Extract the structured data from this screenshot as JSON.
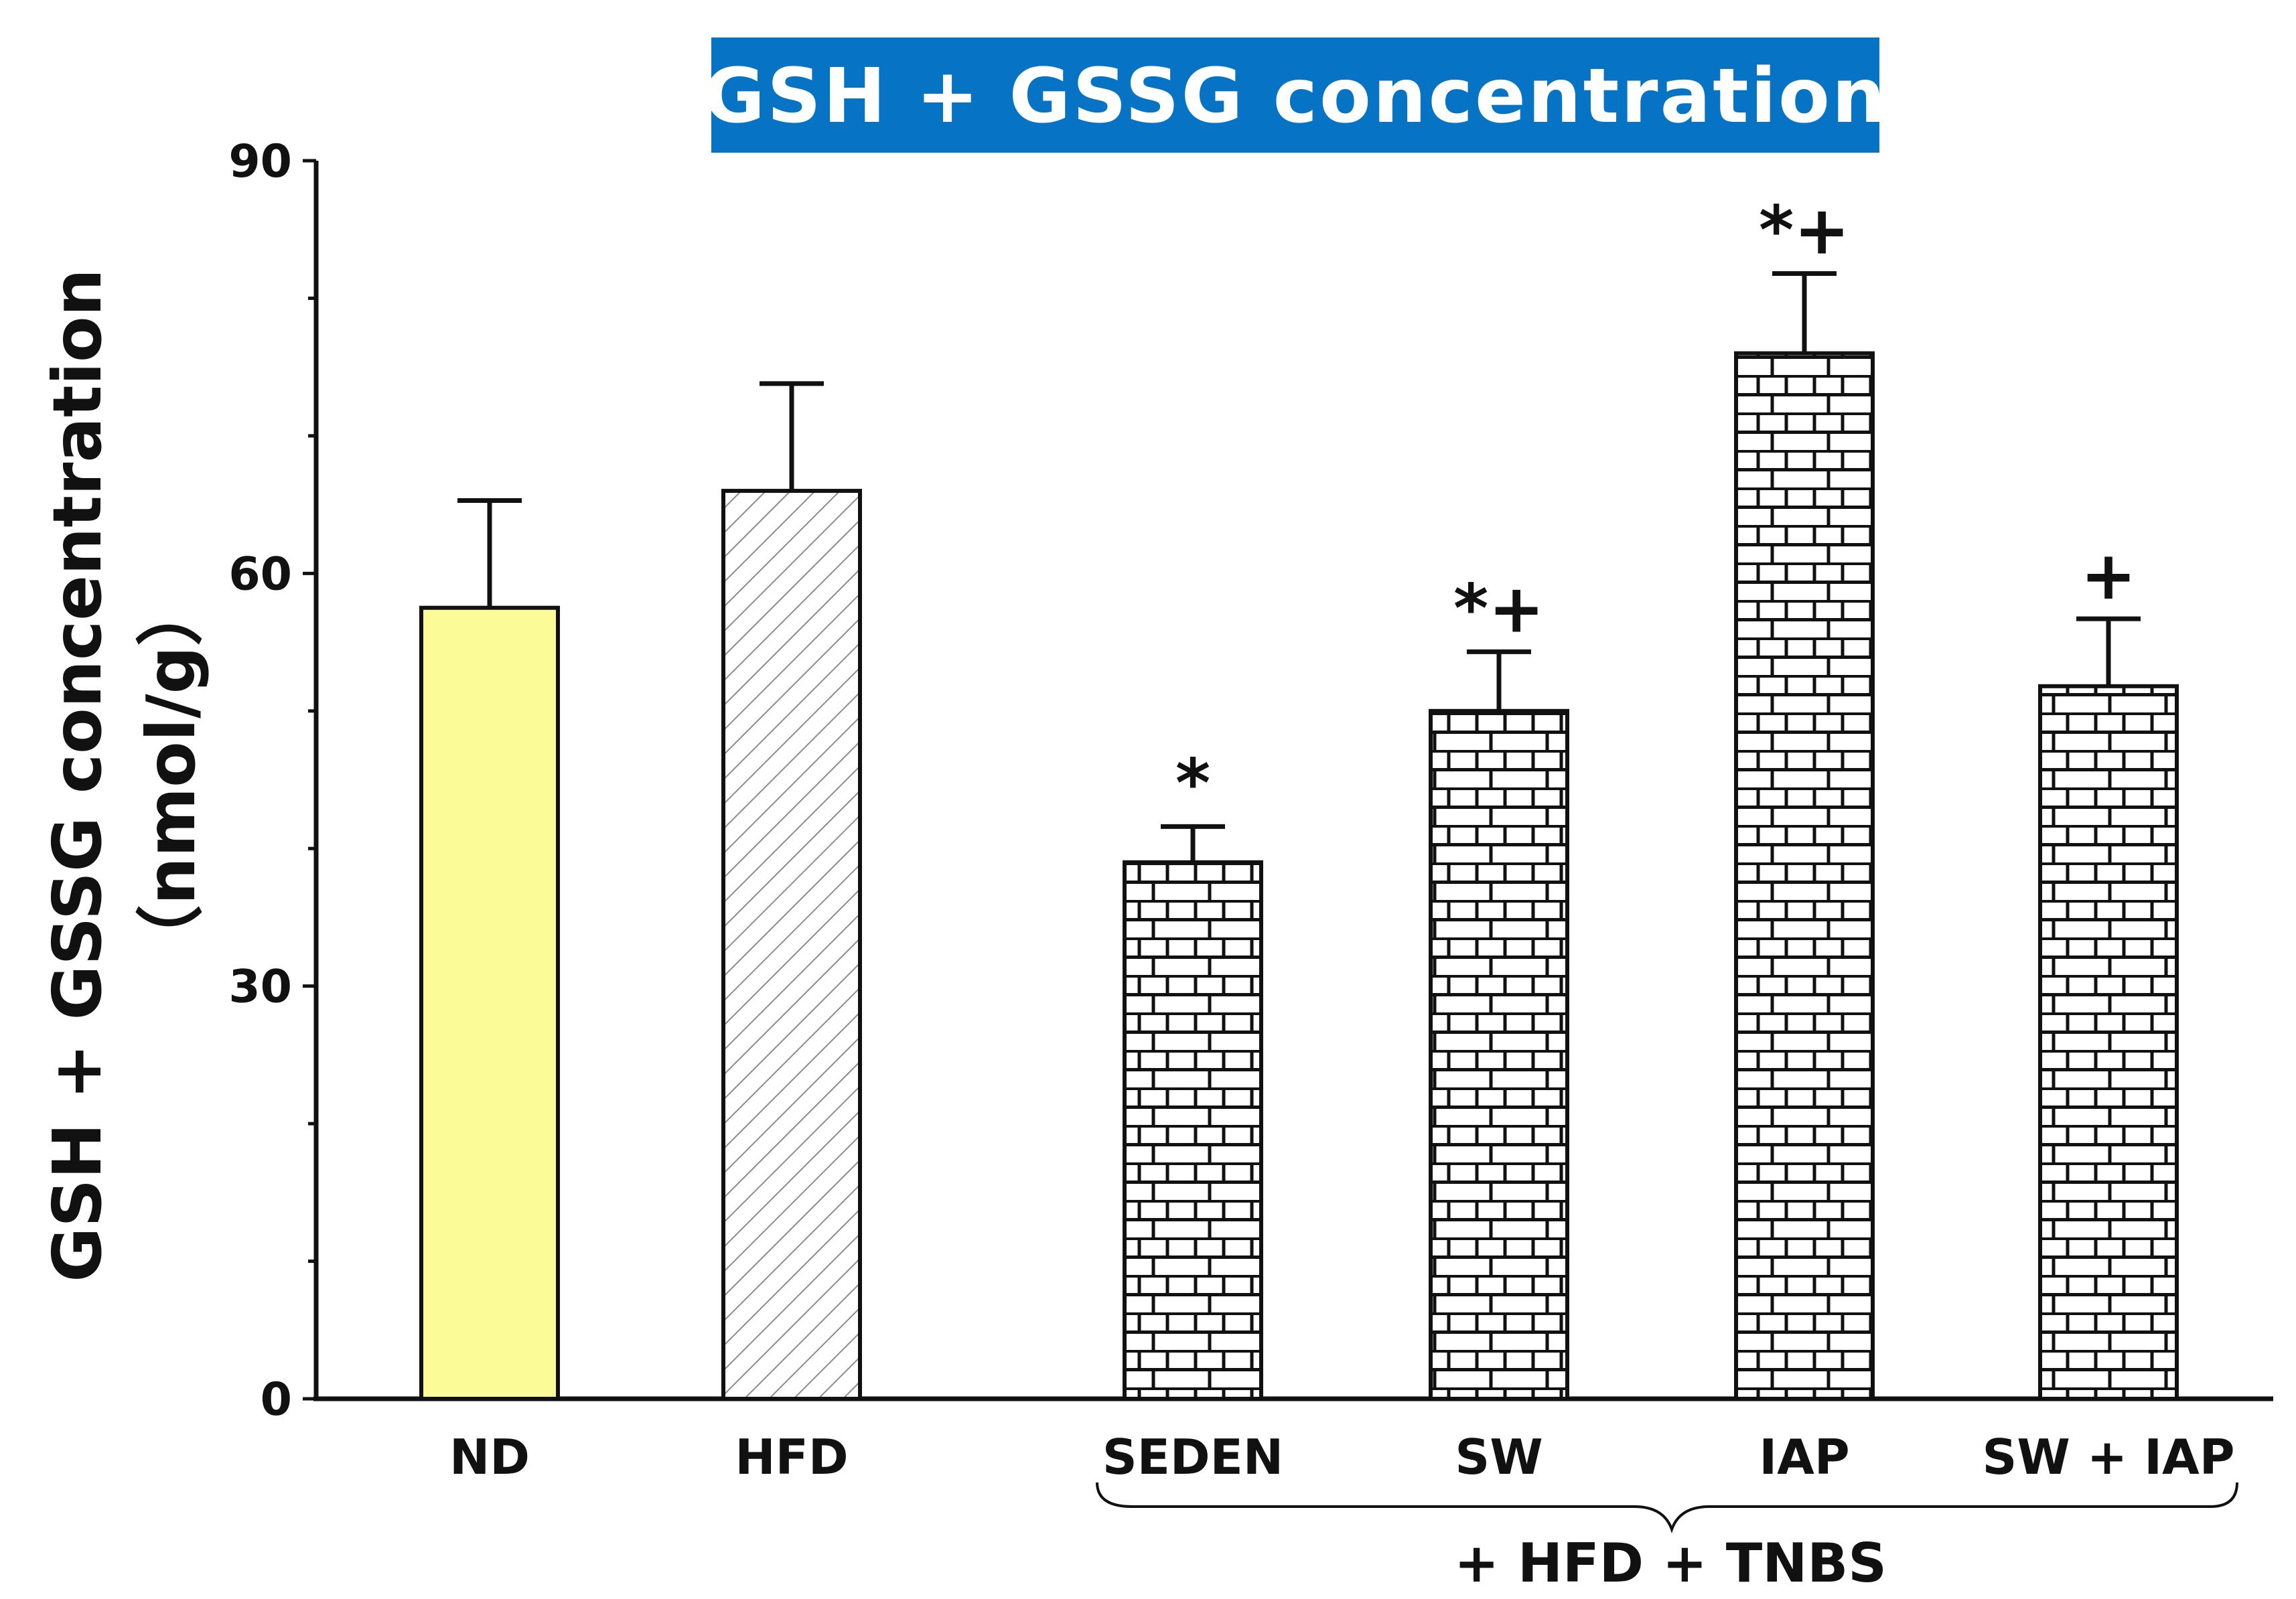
{
  "chart_data": {
    "type": "bar",
    "title": "GSH + GSSG concentration",
    "ylabel_line1": "GSH + GSSG concentration",
    "ylabel_line2": "（nmol/g）",
    "ylim": [
      0,
      90
    ],
    "y_ticks": [
      0,
      30,
      60,
      90
    ],
    "categories": [
      "ND",
      "HFD",
      "SEDEN",
      "SW",
      "IAP",
      "SW +  IAP"
    ],
    "values": [
      57.5,
      66,
      39,
      50,
      76,
      51.8
    ],
    "errors": [
      7.8,
      7.8,
      2.6,
      4.3,
      5.8,
      4.9
    ],
    "annotations": [
      "",
      "",
      "*",
      "*+",
      "*+",
      "+"
    ],
    "fills": [
      "solid-yellow",
      "diagonal-hatch",
      "brick",
      "brick",
      "brick",
      "brick"
    ],
    "colors": {
      "nd_fill": "#fbfb97",
      "hatch": "#9a9a9a",
      "title_bg": "#0673c4"
    },
    "group_label": "+ HFD + TNBS",
    "grid": false,
    "legend": "none"
  }
}
